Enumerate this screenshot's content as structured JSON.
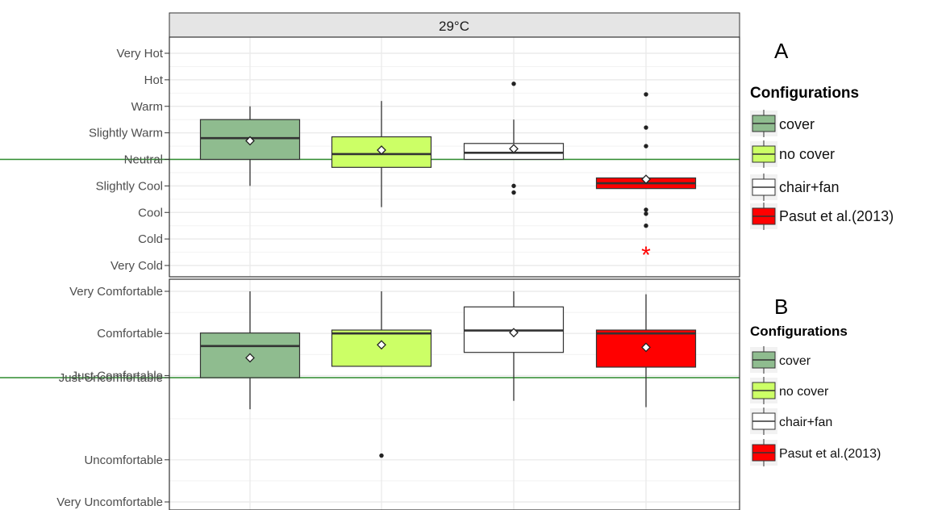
{
  "strip_label": "29°C",
  "panel_a": {
    "tag": "A",
    "legend_title": "Configurations",
    "legend": [
      "cover",
      "no cover",
      "chair+fan",
      "Pasut et al.(2013)"
    ],
    "significance_marker": "*"
  },
  "panel_b": {
    "tag": "B",
    "legend_title": "Configurations",
    "legend": [
      "cover",
      "no cover",
      "chair+fan",
      "Pasut et al.(2013)"
    ]
  },
  "colors": {
    "cover": "#8fbc8f",
    "no_cover": "#ccff66",
    "chair_fan": "#ffffff",
    "pasut": "#ff0000",
    "reference_line": "#2e8b2e",
    "panel_bg": "#ffffff",
    "grid": "#ebebeb",
    "strip_bg": "#e5e5e5",
    "marker": "#ff0000"
  },
  "chart_data": [
    {
      "type": "boxplot",
      "panel": "A",
      "title": "29°C",
      "ylabel": "",
      "ytick_labels": [
        "Very Hot",
        "Hot",
        "Warm",
        "Slightly Warm",
        "Neutral",
        "Slightly Cool",
        "Cool",
        "Cold",
        "Very Cold"
      ],
      "ytick_values": [
        4,
        3,
        2,
        1,
        0,
        -1,
        -2,
        -3,
        -4
      ],
      "ylim": [
        -4,
        4
      ],
      "reference_line": 0,
      "legend_position": "right",
      "grid": true,
      "series": [
        {
          "name": "cover",
          "q1": 0,
          "median": 0.8,
          "q3": 1.5,
          "whisker_low": -1,
          "whisker_high": 2,
          "mean": 0.7,
          "outliers": []
        },
        {
          "name": "no cover",
          "q1": -0.3,
          "median": 0.2,
          "q3": 0.85,
          "whisker_low": -1.8,
          "whisker_high": 2.2,
          "mean": 0.35,
          "outliers": []
        },
        {
          "name": "chair+fan",
          "q1": 0,
          "median": 0.25,
          "q3": 0.6,
          "whisker_low": 0,
          "whisker_high": 1.5,
          "mean": 0.4,
          "outliers": [
            -1,
            -1.25,
            2.85
          ]
        },
        {
          "name": "Pasut et al.(2013)",
          "q1": -1.1,
          "median": -0.9,
          "q3": -0.7,
          "whisker_low": -1.1,
          "whisker_high": -0.7,
          "mean": -0.75,
          "outliers": [
            -1.9,
            -2.05,
            -2.5,
            0.5,
            1.2,
            2.45
          ]
        }
      ]
    },
    {
      "type": "boxplot",
      "panel": "B",
      "title": "",
      "ylabel": "",
      "ytick_labels": [
        "Very Comfortable",
        "Comfortable",
        "Just Comfortable",
        "Just Uncomfortable",
        "Uncomfortable",
        "Very Uncomfortable"
      ],
      "ytick_values": [
        3,
        2,
        1,
        0.95,
        -1,
        -2
      ],
      "ylim": [
        -2,
        3
      ],
      "reference_line": 0.95,
      "legend_position": "right",
      "grid": true,
      "series": [
        {
          "name": "cover",
          "q1": 0.95,
          "median": 1.7,
          "q3": 2.01,
          "whisker_low": 0.2,
          "whisker_high": 3,
          "mean": 1.42,
          "outliers": []
        },
        {
          "name": "no cover",
          "q1": 1.22,
          "median": 2,
          "q3": 2.08,
          "whisker_low": 1.22,
          "whisker_high": 3,
          "mean": 1.73,
          "outliers": [
            -0.9
          ]
        },
        {
          "name": "chair+fan",
          "q1": 1.55,
          "median": 2.07,
          "q3": 2.63,
          "whisker_low": 0.4,
          "whisker_high": 3,
          "mean": 2.02,
          "outliers": []
        },
        {
          "name": "Pasut et al.(2013)",
          "q1": 1.2,
          "median": 2,
          "q3": 2.08,
          "whisker_low": 0.25,
          "whisker_high": 2.93,
          "mean": 1.67,
          "outliers": []
        }
      ]
    }
  ]
}
